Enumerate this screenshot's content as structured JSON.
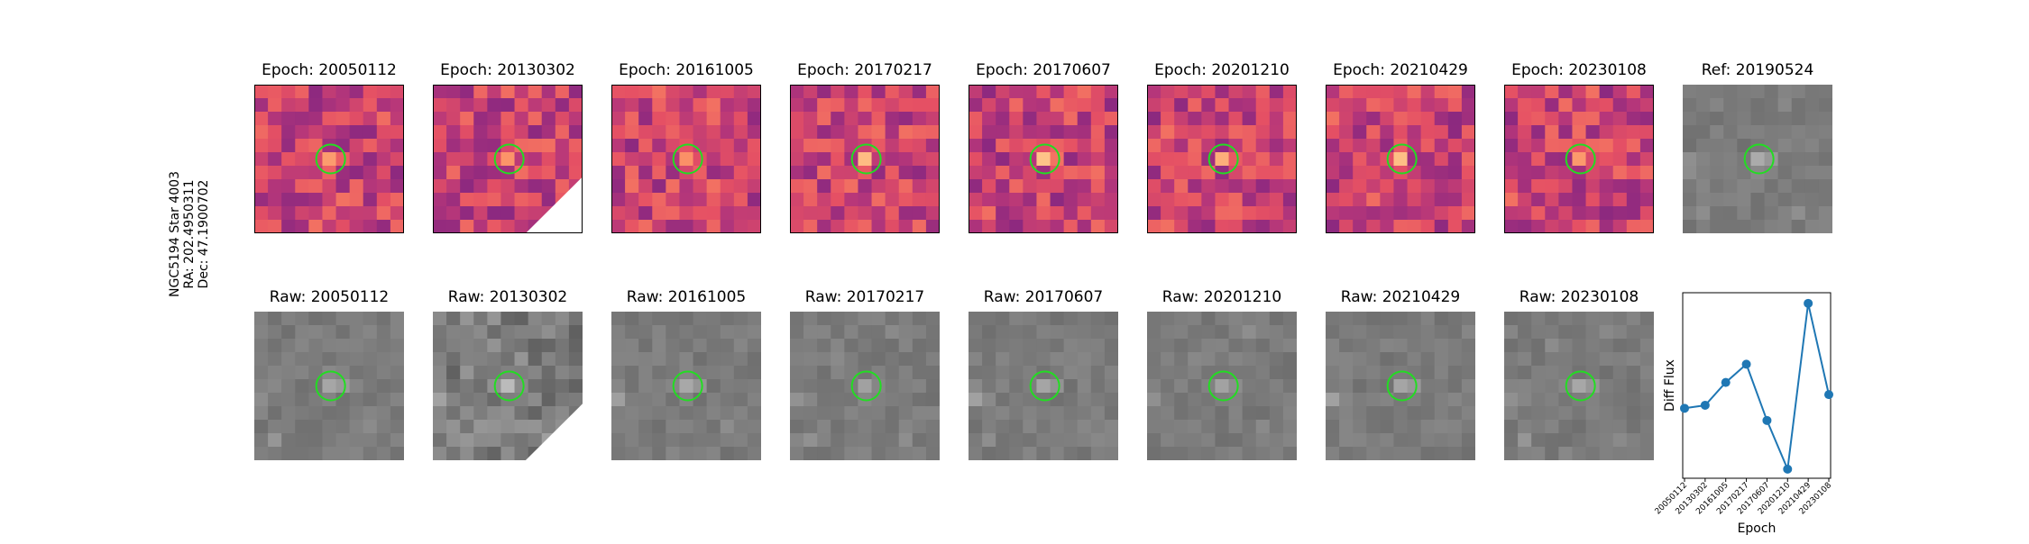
{
  "star_label": {
    "name": "NGC5194 Star 4003",
    "ra": "RA: 202.4950311",
    "dec": "Dec: 47.1900702"
  },
  "diff_panels": [
    {
      "title": "Epoch: 20050112"
    },
    {
      "title": "Epoch: 20130302"
    },
    {
      "title": "Epoch: 20161005"
    },
    {
      "title": "Epoch: 20170217"
    },
    {
      "title": "Epoch: 20170607"
    },
    {
      "title": "Epoch: 20201210"
    },
    {
      "title": "Epoch: 20210429"
    },
    {
      "title": "Epoch: 20230108"
    }
  ],
  "ref_panel": {
    "title": "Ref: 20190524"
  },
  "raw_panels": [
    {
      "title": "Raw: 20050112"
    },
    {
      "title": "Raw: 20130302"
    },
    {
      "title": "Raw: 20161005"
    },
    {
      "title": "Raw: 20170217"
    },
    {
      "title": "Raw: 20170607"
    },
    {
      "title": "Raw: 20201210"
    },
    {
      "title": "Raw: 20210429"
    },
    {
      "title": "Raw: 20230108"
    }
  ],
  "colors": {
    "circle": "#22dd22",
    "series": "#1f77b4",
    "magma_dark": "#2c105c",
    "magma_mid": "#b63679",
    "magma_bright": "#fb8861",
    "gray_background": "#8c8c8c"
  },
  "chart_data": {
    "type": "line",
    "xlabel": "Epoch",
    "ylabel": "Diff Flux",
    "categories": [
      "20050112",
      "20130302",
      "20161005",
      "20170217",
      "20170607",
      "20201210",
      "20210429",
      "20230108"
    ],
    "series": [
      {
        "values": [
          0.31,
          0.33,
          0.48,
          0.6,
          0.23,
          -0.09,
          1.0,
          0.4
        ]
      }
    ],
    "ylim": [
      -0.15,
      1.07
    ],
    "grid": false,
    "marker": "circle"
  }
}
